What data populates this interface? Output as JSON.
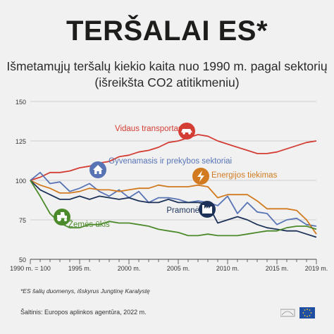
{
  "header": {
    "title": "TERŠALAI ES*",
    "subtitle_line1": "Išmetamųjų teršalų kiekio kaita nuo 1990 m. pagal sektorių",
    "subtitle_line2": "(išreikšta CO2 atitikmeniu)"
  },
  "footer": {
    "footnote": "*ES šalių duomenys, išskyrus Jungtinę Karalystę",
    "source": "Šaltinis: Europos aplinkos agentūra, 2022 m."
  },
  "chart_data": {
    "type": "line",
    "ylim": [
      50,
      150
    ],
    "yticks": [
      "150",
      "125",
      "100",
      "75",
      "50"
    ],
    "ytick_values": [
      150,
      125,
      100,
      75,
      50
    ],
    "xlim": [
      1990,
      2019
    ],
    "xticks": [
      "1990 m. = 100",
      "1995 m.",
      "2000 m.",
      "2005 m.",
      "2010 m.",
      "2015 m.",
      "2019 m."
    ],
    "xtick_values": [
      1990,
      1995,
      2000,
      2005,
      2010,
      2015,
      2019
    ],
    "x": [
      1990,
      1991,
      1992,
      1993,
      1994,
      1995,
      1996,
      1997,
      1998,
      1999,
      2000,
      2001,
      2002,
      2003,
      2004,
      2005,
      2006,
      2007,
      2008,
      2009,
      2010,
      2011,
      2012,
      2013,
      2014,
      2015,
      2016,
      2017,
      2018,
      2019
    ],
    "series": [
      {
        "name": "Vidaus transportas",
        "color": "#d43d34",
        "icon": "car-icon",
        "values": [
          100,
          102,
          105,
          105,
          106,
          108,
          109,
          111,
          112,
          115,
          116,
          118,
          119,
          121,
          124,
          125,
          127,
          129,
          128,
          125,
          123,
          121,
          119,
          117,
          117,
          118,
          120,
          122,
          124,
          125
        ]
      },
      {
        "name": "Gyvenamasis ir prekybos sektoriai",
        "color": "#5874b5",
        "icon": "house-icon",
        "values": [
          100,
          105,
          98,
          99,
          93,
          95,
          98,
          93,
          90,
          94,
          89,
          93,
          86,
          89,
          89,
          88,
          86,
          87,
          86,
          84,
          90,
          79,
          86,
          80,
          79,
          72,
          75,
          76,
          72,
          71
        ]
      },
      {
        "name": "Energijos tiekimas",
        "color": "#d17a1f",
        "icon": "lightning-icon",
        "values": [
          100,
          97,
          95,
          92,
          92,
          93,
          95,
          94,
          94,
          93,
          94,
          95,
          95,
          97,
          96,
          96,
          96,
          97,
          96,
          89,
          91,
          91,
          91,
          87,
          82,
          82,
          82,
          81,
          75,
          66
        ]
      },
      {
        "name": "Pramonė",
        "color": "#1c3258",
        "icon": "factory-icon",
        "values": [
          100,
          94,
          91,
          88,
          88,
          90,
          88,
          90,
          89,
          88,
          89,
          87,
          86,
          86,
          88,
          86,
          86,
          86,
          85,
          73,
          75,
          77,
          75,
          72,
          70,
          69,
          68,
          68,
          66,
          64
        ]
      },
      {
        "name": "Žemės ūkis",
        "color": "#4c8a2b",
        "icon": "tractor-icon",
        "values": [
          100,
          90,
          79,
          73,
          70,
          70,
          72,
          72,
          74,
          73,
          73,
          72,
          71,
          69,
          68,
          67,
          65,
          65,
          66,
          65,
          65,
          65,
          66,
          67,
          68,
          68,
          70,
          71,
          71,
          69
        ]
      }
    ]
  }
}
